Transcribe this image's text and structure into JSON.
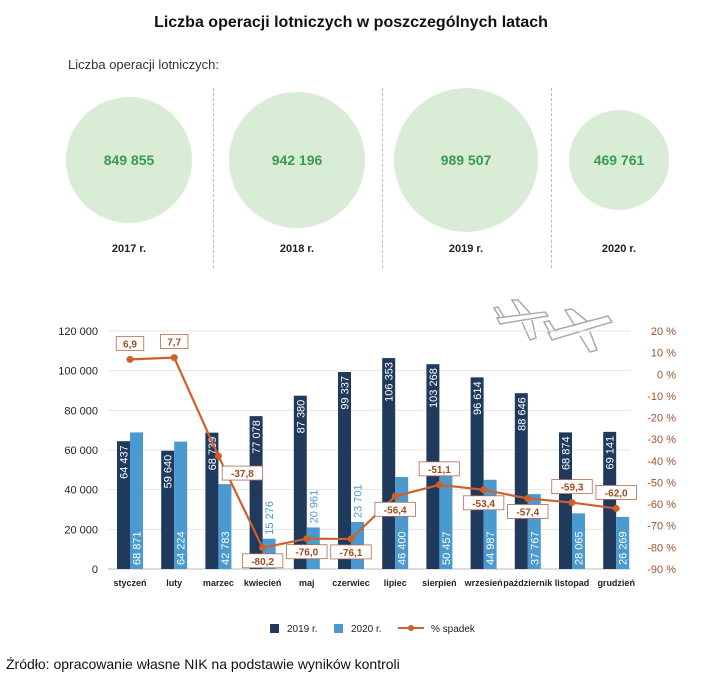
{
  "title": "Liczba operacji lotniczych w poszczególnych latach",
  "summary": {
    "label": "Liczba operacji lotniczych:",
    "years": [
      {
        "year": "2017 r.",
        "value": "849 855",
        "amount": 849855
      },
      {
        "year": "2018 r.",
        "value": "942 196",
        "amount": 942196
      },
      {
        "year": "2019 r.",
        "value": "989 507",
        "amount": 989507
      },
      {
        "year": "2020 r.",
        "value": "469 761",
        "amount": 469761
      }
    ]
  },
  "chart_data": {
    "type": "bar",
    "categories": [
      "styczeń",
      "luty",
      "marzec",
      "kwiecień",
      "maj",
      "czerwiec",
      "lipiec",
      "sierpień",
      "wrzesień",
      "październik",
      "listopad",
      "grudzień"
    ],
    "series": [
      {
        "name": "2019 r.",
        "type": "bar",
        "axis": "left",
        "color": "#1f3a5c",
        "values": [
          64437,
          59640,
          68739,
          77078,
          87380,
          99337,
          106353,
          103268,
          96614,
          88646,
          68874,
          69141
        ],
        "labels": [
          "64 437",
          "59 640",
          "68 739",
          "77 078",
          "87 380",
          "99 337",
          "106 353",
          "103 268",
          "96 614",
          "88 646",
          "68 874",
          "69 141"
        ]
      },
      {
        "name": "2020 r.",
        "type": "bar",
        "axis": "left",
        "color": "#4a9ad0",
        "values": [
          68871,
          64224,
          42783,
          15276,
          20961,
          23701,
          46400,
          50457,
          44987,
          37767,
          28065,
          26269
        ],
        "labels": [
          "68 871",
          "64 224",
          "42 783",
          "15 276",
          "20 961",
          "23 701",
          "46 400",
          "50 457",
          "44 987",
          "37 767",
          "28 065",
          "26 269"
        ]
      },
      {
        "name": "% spadek",
        "type": "line",
        "axis": "right",
        "color": "#d0602a",
        "values": [
          6.9,
          7.7,
          -37.8,
          -80.2,
          -76.0,
          -76.1,
          -56.4,
          -51.1,
          -53.4,
          -57.4,
          -59.3,
          -62.0
        ],
        "labels": [
          "6,9",
          "7,7",
          "-37,8",
          "-80,2",
          "-76,0",
          "-76,1",
          "-56,4",
          "-51,1",
          "-53,4",
          "-57,4",
          "-59,3",
          "-62,0"
        ]
      }
    ],
    "y_left": {
      "range": [
        0,
        120000
      ],
      "ticks": [
        "0",
        "20 000",
        "40 000",
        "60 000",
        "80 000",
        "100 000",
        "120 000"
      ]
    },
    "y_right": {
      "range": [
        -90,
        20
      ],
      "ticks": [
        "-90 %",
        "-80 %",
        "-70 %",
        "-60 %",
        "-50 %",
        "-40 %",
        "-30 %",
        "-20 %",
        "-10 %",
        "0 %",
        "10 %",
        "20 %"
      ]
    },
    "grid": true,
    "legend": "bottom"
  },
  "source": "Źródło: opracowanie własne NIK na podstawie wyników kontroli"
}
